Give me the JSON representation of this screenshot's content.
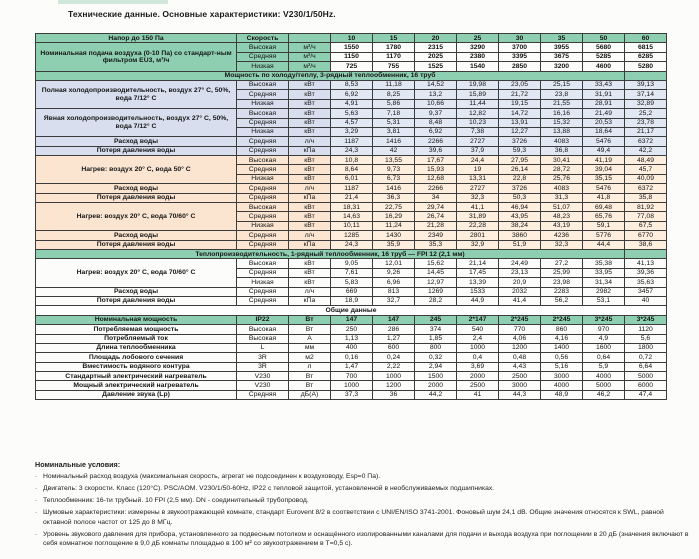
{
  "palette": {
    "green": "#8ecfb1",
    "blue_label": "#d8deee",
    "blue_data": "#e2e7f4",
    "peach_label": "#fbe5d1",
    "peach_data": "#fdeedd",
    "border": "#141414"
  },
  "title": "Технические данные. Основные характеристики: V230/1/50Hz.",
  "table": {
    "header": {
      "label": "Напор до 150 Па",
      "speed": "Скорость",
      "unit": "",
      "sizes": [
        "10",
        "15",
        "20",
        "25",
        "30",
        "35",
        "50",
        "60"
      ]
    },
    "groups": [
      {
        "label": "Номинальная подача воздуха (0-10 Па) со стандарт-ным фильтром EU3, м³/ч",
        "tint": "air",
        "rows": [
          {
            "speed": "Высокая",
            "unit": "м³/ч",
            "values": [
              "1550",
              "1780",
              "2315",
              "3290",
              "3700",
              "3955",
              "5680",
              "6815"
            ]
          },
          {
            "speed": "Средняя",
            "unit": "м³/ч",
            "values": [
              "1150",
              "1170",
              "2025",
              "2380",
              "3395",
              "3675",
              "5285",
              "6285"
            ]
          },
          {
            "speed": "Низкая",
            "unit": "м³/ч",
            "values": [
              "725",
              "755",
              "1525",
              "1540",
              "2850",
              "3200",
              "4600",
              "5280"
            ]
          }
        ]
      },
      {
        "banner": "Мощность по холоду/теплу, 3-рядный теплообменник, 16 труб",
        "thick": true
      },
      {
        "label": "Полная холодопроизводительность, воздух 27° C, 50%, вода 7/12° C",
        "tint": "blue",
        "thick": true,
        "rows": [
          {
            "speed": "Высокая",
            "unit": "кВт",
            "values": [
              "8,53",
              "11,18",
              "14,52",
              "19,98",
              "23,05",
              "25,15",
              "33,43",
              "39,13"
            ]
          },
          {
            "speed": "Средняя",
            "unit": "кВт",
            "values": [
              "6,92",
              "8,25",
              "13,2",
              "15,89",
              "21,72",
              "23,8",
              "31,91",
              "37,14"
            ]
          },
          {
            "speed": "Низкая",
            "unit": "кВт",
            "values": [
              "4,91",
              "5,86",
              "10,66",
              "11,44",
              "19,15",
              "21,55",
              "28,91",
              "32,89"
            ]
          }
        ]
      },
      {
        "label": "Явная холодопроизводительность, воздух 27° C, 50%, вода 7/12° C",
        "tint": "blue",
        "thick": true,
        "rows": [
          {
            "speed": "Высокая",
            "unit": "кВт",
            "values": [
              "5,63",
              "7,18",
              "9,37",
              "12,82",
              "14,72",
              "16,16",
              "21,49",
              "25,2"
            ]
          },
          {
            "speed": "Средняя",
            "unit": "кВт",
            "values": [
              "4,57",
              "5,31",
              "8,48",
              "10,23",
              "13,91",
              "15,32",
              "20,53",
              "23,78"
            ]
          },
          {
            "speed": "Низкая",
            "unit": "кВт",
            "values": [
              "3,29",
              "3,81",
              "6,92",
              "7,38",
              "12,27",
              "13,88",
              "18,64",
              "21,17"
            ]
          }
        ]
      },
      {
        "label": "Расход воды",
        "tint": "blue",
        "thick": true,
        "rows": [
          {
            "speed": "Средняя",
            "unit": "л/ч",
            "values": [
              "1187",
              "1416",
              "2266",
              "2727",
              "3726",
              "4083",
              "5476",
              "6372"
            ]
          }
        ]
      },
      {
        "label": "Потеря давления воды",
        "tint": "blue",
        "rows": [
          {
            "speed": "Средняя",
            "unit": "кПа",
            "values": [
              "24,3",
              "42",
              "39,6",
              "37,9",
              "59,3",
              "36,8",
              "49,4",
              "42,2"
            ]
          }
        ]
      },
      {
        "label": "Нагрев: воздух 20° С, вода 50° С",
        "tint": "peach",
        "thick": true,
        "rows": [
          {
            "speed": "Высокая",
            "unit": "кВт",
            "values": [
              "10,8",
              "13,55",
              "17,67",
              "24,4",
              "27,95",
              "30,41",
              "41,19",
              "48,49"
            ]
          },
          {
            "speed": "Средняя",
            "unit": "кВт",
            "values": [
              "8,64",
              "9,73",
              "15,93",
              "19",
              "26,14",
              "28,72",
              "39,04",
              "45,7"
            ]
          },
          {
            "speed": "Низкая",
            "unit": "кВт",
            "values": [
              "6,01",
              "6,73",
              "12,68",
              "13,31",
              "22,8",
              "25,76",
              "35,15",
              "40,09"
            ]
          }
        ]
      },
      {
        "label": "Расход воды",
        "tint": "peach",
        "thick": true,
        "rows": [
          {
            "speed": "Средняя",
            "unit": "л/ч",
            "values": [
              "1187",
              "1416",
              "2266",
              "2727",
              "3726",
              "4083",
              "5476",
              "6372"
            ]
          }
        ]
      },
      {
        "label": "Потеря давления воды",
        "tint": "peach",
        "rows": [
          {
            "speed": "Средняя",
            "unit": "кПа",
            "values": [
              "21,4",
              "36,3",
              "34",
              "32,3",
              "50,3",
              "31,3",
              "41,8",
              "35,8"
            ]
          }
        ]
      },
      {
        "label": "Нагрев: воздух 20° С, вода 70/60° С",
        "tint": "peach",
        "thick": true,
        "rows": [
          {
            "speed": "Высокая",
            "unit": "кВт",
            "values": [
              "18,31",
              "22,75",
              "29,74",
              "41,1",
              "46,94",
              "51,07",
              "69,48",
              "81,92"
            ]
          },
          {
            "speed": "Средняя",
            "unit": "кВт",
            "values": [
              "14,63",
              "16,29",
              "26,74",
              "31,89",
              "43,95",
              "48,23",
              "65,76",
              "77,08"
            ]
          },
          {
            "speed": "Низкая",
            "unit": "кВт",
            "values": [
              "10,11",
              "11,24",
              "21,28",
              "22,28",
              "38,24",
              "43,19",
              "59,1",
              "67,5"
            ]
          }
        ]
      },
      {
        "label": "Расход воды",
        "tint": "peach",
        "thick": true,
        "rows": [
          {
            "speed": "Средняя",
            "unit": "л/ч",
            "values": [
              "1285",
              "1430",
              "2349",
              "2801",
              "3860",
              "4236",
              "5776",
              "6770"
            ]
          }
        ]
      },
      {
        "label": "Потеря давления воды",
        "tint": "peach",
        "rows": [
          {
            "speed": "Средняя",
            "unit": "кПа",
            "values": [
              "24,3",
              "35,9",
              "35,3",
              "32,9",
              "51,9",
              "32,3",
              "44,4",
              "38,6"
            ]
          }
        ]
      },
      {
        "banner": "Теплопроизводительность, 1-рядный теплообменник, 16 труб — FPI 12 (2,1 мм)",
        "thick": true
      },
      {
        "label": "Нагрев: воздух 20° С, вода 70/60° С",
        "tint": "white",
        "thick": true,
        "rows": [
          {
            "speed": "Высокая",
            "unit": "кВт",
            "values": [
              "9,05",
              "12,01",
              "15,62",
              "21,14",
              "24,49",
              "27,2",
              "35,38",
              "41,13"
            ]
          },
          {
            "speed": "Средняя",
            "unit": "кВт",
            "values": [
              "7,61",
              "9,26",
              "14,45",
              "17,45",
              "23,13",
              "25,99",
              "33,95",
              "39,36"
            ]
          },
          {
            "speed": "Низкая",
            "unit": "кВт",
            "values": [
              "5,83",
              "6,96",
              "12,97",
              "13,39",
              "20,9",
              "23,98",
              "31,34",
              "35,63"
            ]
          }
        ]
      },
      {
        "label": "Расход воды",
        "tint": "white",
        "thick": true,
        "rows": [
          {
            "speed": "Средняя",
            "unit": "л/ч",
            "values": [
              "669",
              "813",
              "1269",
              "1533",
              "2032",
              "2283",
              "2982",
              "3457"
            ]
          }
        ]
      },
      {
        "label": "Потеря давления воды",
        "tint": "white",
        "rows": [
          {
            "speed": "Средняя",
            "unit": "кПа",
            "values": [
              "18,9",
              "32,7",
              "28,2",
              "44,9",
              "41,4",
              "56,2",
              "53,1",
              "40"
            ]
          }
        ]
      },
      {
        "section": "Общие данные",
        "thick": true
      },
      {
        "label": "Номинальная мощность",
        "tint": "green",
        "thick": true,
        "rows": [
          {
            "speed": "IP22",
            "unit": "Вт",
            "values": [
              "147",
              "147",
              "245",
              "2*147",
              "2*245",
              "2*245",
              "3*245",
              "3*245"
            ]
          }
        ]
      },
      {
        "label": "Потребляемая мощность",
        "tint": "white",
        "rows": [
          {
            "speed": "Высокая",
            "unit": "Вт",
            "values": [
              "250",
              "286",
              "374",
              "540",
              "770",
              "860",
              "970",
              "1120"
            ]
          }
        ]
      },
      {
        "label": "Потребляемый ток",
        "tint": "white",
        "rows": [
          {
            "speed": "Высокая",
            "unit": "А",
            "values": [
              "1,13",
              "1,27",
              "1,85",
              "2,4",
              "4,06",
              "4,16",
              "4,9",
              "5,6"
            ]
          }
        ]
      },
      {
        "label": "Длина теплообменника",
        "tint": "white",
        "rows": [
          {
            "speed": "L",
            "unit": "мм",
            "values": [
              "400",
              "600",
              "800",
              "1000",
              "1200",
              "1400",
              "1600",
              "1800"
            ]
          }
        ]
      },
      {
        "label": "Площадь лобового сечения",
        "tint": "white",
        "rows": [
          {
            "speed": "3R",
            "unit": "м2",
            "values": [
              "0,16",
              "0,24",
              "0,32",
              "0,4",
              "0,48",
              "0,56",
              "0,64",
              "0,72"
            ]
          }
        ]
      },
      {
        "label": "Вместимость водяного контура",
        "tint": "white",
        "rows": [
          {
            "speed": "3R",
            "unit": "л",
            "values": [
              "1,47",
              "2,22",
              "2,94",
              "3,69",
              "4,43",
              "5,16",
              "5,9",
              "6,64"
            ]
          }
        ]
      },
      {
        "label": "Стандартный электрический нагреватель",
        "tint": "white",
        "thick": true,
        "rows": [
          {
            "speed": "V230",
            "unit": "Вт",
            "values": [
              "700",
              "1000",
              "1500",
              "2000",
              "2500",
              "3000",
              "4000",
              "5000"
            ]
          }
        ]
      },
      {
        "label": "Мощный электрический нагреватель",
        "tint": "white",
        "rows": [
          {
            "speed": "V230",
            "unit": "Вт",
            "values": [
              "1000",
              "1200",
              "2000",
              "2500",
              "3000",
              "4000",
              "5000",
              "6000"
            ]
          }
        ]
      },
      {
        "label": "Давление звука (Lp)",
        "tint": "white",
        "thick": true,
        "rows": [
          {
            "speed": "Средняя",
            "unit": "дБ(А)",
            "values": [
              "37,3",
              "36",
              "44,2",
              "41",
              "44,3",
              "48,9",
              "46,2",
              "47,4"
            ]
          }
        ]
      }
    ]
  },
  "footnotes": {
    "title": "Номинальные условия:",
    "items": [
      "Номинальный расход воздуха (максимальная скорость, агрегат не подсоединен к воздуховоду, Esp=0 Па).",
      "Двигатель: 3 скорости. Класс (120°C). PSC/AOM. V230/1/50-60Hz, IP22 с тепловой защитой, установленной в необслуживаемых подшипниках.",
      "Теплообменник: 16-ти трубный. 10 FPI (2,5 мм). DN - соединительный трубопровод.",
      "Шумовые характеристики: измерены в звукоотражающей комнате, стандарт Eurovent  8/2 в соответствии с UNI/EN/ISO 3741-2001. Фоновый шум 24,1 dB. Общие значения относятся к  SWL, равной октавной полосе частот от 125 до 8 МГц.",
      "Уровень звукового давления для прибора, установленного за подвесным потолком и оснащённого изолированными каналами для подачи и выхода  воздуха при поглощении в 20 дБ (значения включают в себя комнатное поглощение в 9,0 дБ комнаты площадью в 100 м²  со звукоотражением в T=0,5 с)."
    ]
  }
}
